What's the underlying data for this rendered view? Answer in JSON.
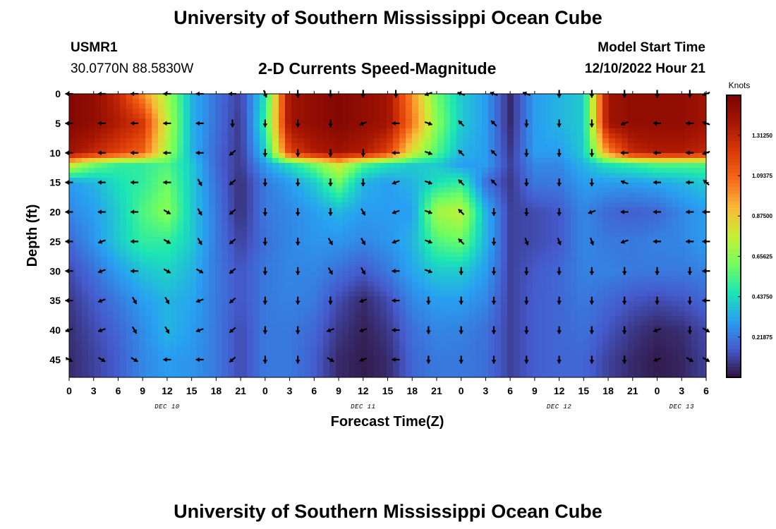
{
  "header": {
    "title": "University of Southern Mississippi Ocean Cube",
    "station_id": "USMR1",
    "station_coords": "30.0770N  88.5830W",
    "subtitle": "2-D Currents Speed-Magnitude",
    "model_start_label": "Model Start Time",
    "model_start_value": "12/10/2022 Hour 21"
  },
  "footer": {
    "title": "University of Southern Mississippi Ocean Cube"
  },
  "chart_data": {
    "type": "heatmap",
    "title": "2-D Currents Speed-Magnitude",
    "xlabel": "Forecast Time(Z)",
    "ylabel": "Depth (ft)",
    "x_hours_range": [
      0,
      78
    ],
    "y_range": [
      0,
      48
    ],
    "x_tick_labels": [
      "0",
      "3",
      "6",
      "9",
      "12",
      "15",
      "18",
      "21",
      "0",
      "3",
      "6",
      "9",
      "12",
      "15",
      "18",
      "21",
      "0",
      "3",
      "6",
      "9",
      "12",
      "15",
      "18",
      "21",
      "0",
      "3",
      "6"
    ],
    "y_tick_labels": [
      "0",
      "5",
      "10",
      "15",
      "20",
      "25",
      "30",
      "35",
      "40",
      "45"
    ],
    "day_labels": [
      {
        "label": "DEC 10",
        "hour": 12
      },
      {
        "label": "DEC 11",
        "hour": 36
      },
      {
        "label": "DEC 12",
        "hour": 60
      },
      {
        "label": "DEC 13",
        "hour": 75
      }
    ],
    "colorbar": {
      "unit": "Knots",
      "range": [
        0.0,
        1.53
      ],
      "tick_labels": [
        "1.31250",
        "1.09375",
        "0.87500",
        "0.65625",
        "0.43750",
        "0.21875"
      ],
      "tick_values": [
        1.3125,
        1.09375,
        0.875,
        0.65625,
        0.4375,
        0.21875
      ]
    },
    "speed_grid": {
      "units": "knots",
      "x_hours": [
        0,
        3,
        6,
        9,
        12,
        15,
        18,
        21,
        24,
        27,
        30,
        33,
        36,
        39,
        42,
        45,
        48,
        51,
        54,
        57,
        60,
        63,
        66,
        69,
        72,
        75,
        78
      ],
      "depths_ft": [
        0,
        5,
        10,
        12,
        15,
        20,
        25,
        30,
        35,
        40,
        45,
        48
      ],
      "values": [
        [
          1.5,
          1.45,
          1.3,
          1.0,
          0.7,
          0.35,
          0.2,
          0.1,
          0.45,
          1.4,
          1.45,
          1.5,
          1.45,
          1.4,
          1.0,
          0.6,
          0.4,
          0.3,
          0.05,
          0.3,
          0.35,
          0.4,
          1.4,
          1.45,
          1.45,
          1.45,
          1.4
        ],
        [
          1.5,
          1.45,
          1.35,
          1.25,
          0.75,
          0.35,
          0.2,
          0.08,
          0.5,
          1.4,
          1.45,
          1.5,
          1.45,
          1.4,
          1.05,
          0.65,
          0.4,
          0.3,
          0.05,
          0.3,
          0.35,
          0.4,
          1.4,
          1.45,
          1.45,
          1.45,
          1.4
        ],
        [
          1.4,
          1.3,
          1.2,
          1.1,
          0.7,
          0.35,
          0.18,
          0.08,
          0.4,
          1.2,
          1.35,
          1.4,
          1.35,
          1.2,
          0.8,
          0.55,
          0.35,
          0.3,
          0.08,
          0.3,
          0.3,
          0.4,
          1.0,
          1.3,
          1.35,
          1.35,
          1.3
        ],
        [
          0.8,
          0.6,
          0.5,
          0.5,
          0.55,
          0.4,
          0.18,
          0.08,
          0.3,
          0.45,
          0.6,
          0.8,
          0.55,
          0.45,
          0.4,
          0.4,
          0.3,
          0.3,
          0.1,
          0.25,
          0.25,
          0.35,
          0.45,
          0.5,
          0.55,
          0.55,
          0.55
        ],
        [
          0.3,
          0.35,
          0.45,
          0.5,
          0.6,
          0.4,
          0.2,
          0.06,
          0.22,
          0.3,
          0.4,
          0.6,
          0.35,
          0.3,
          0.35,
          0.45,
          0.5,
          0.2,
          0.08,
          0.22,
          0.22,
          0.3,
          0.3,
          0.3,
          0.32,
          0.35,
          0.4
        ],
        [
          0.25,
          0.3,
          0.4,
          0.55,
          0.65,
          0.4,
          0.22,
          0.06,
          0.22,
          0.25,
          0.3,
          0.35,
          0.3,
          0.3,
          0.3,
          0.7,
          0.75,
          0.35,
          0.1,
          0.12,
          0.15,
          0.25,
          0.18,
          0.16,
          0.18,
          0.25,
          0.3
        ],
        [
          0.18,
          0.28,
          0.4,
          0.5,
          0.5,
          0.4,
          0.22,
          0.1,
          0.2,
          0.25,
          0.28,
          0.28,
          0.25,
          0.28,
          0.35,
          0.55,
          0.6,
          0.35,
          0.1,
          0.12,
          0.15,
          0.25,
          0.22,
          0.22,
          0.24,
          0.25,
          0.3
        ],
        [
          0.12,
          0.2,
          0.3,
          0.38,
          0.42,
          0.35,
          0.22,
          0.14,
          0.22,
          0.25,
          0.25,
          0.2,
          0.15,
          0.22,
          0.32,
          0.4,
          0.4,
          0.3,
          0.1,
          0.15,
          0.18,
          0.24,
          0.24,
          0.22,
          0.22,
          0.22,
          0.24
        ],
        [
          0.08,
          0.15,
          0.22,
          0.3,
          0.35,
          0.32,
          0.22,
          0.14,
          0.22,
          0.24,
          0.22,
          0.12,
          0.05,
          0.12,
          0.25,
          0.3,
          0.3,
          0.25,
          0.1,
          0.16,
          0.18,
          0.22,
          0.18,
          0.14,
          0.12,
          0.14,
          0.18
        ],
        [
          0.06,
          0.12,
          0.18,
          0.26,
          0.35,
          0.3,
          0.22,
          0.12,
          0.22,
          0.22,
          0.18,
          0.08,
          0.03,
          0.08,
          0.2,
          0.25,
          0.24,
          0.2,
          0.1,
          0.16,
          0.18,
          0.2,
          0.14,
          0.08,
          0.04,
          0.06,
          0.12
        ],
        [
          0.05,
          0.1,
          0.16,
          0.25,
          0.3,
          0.28,
          0.22,
          0.12,
          0.22,
          0.22,
          0.16,
          0.05,
          0.02,
          0.05,
          0.18,
          0.22,
          0.22,
          0.2,
          0.1,
          0.16,
          0.18,
          0.18,
          0.1,
          0.05,
          0.02,
          0.04,
          0.1
        ],
        [
          0.05,
          0.1,
          0.16,
          0.25,
          0.3,
          0.28,
          0.22,
          0.12,
          0.22,
          0.22,
          0.16,
          0.05,
          0.02,
          0.05,
          0.18,
          0.22,
          0.22,
          0.2,
          0.1,
          0.16,
          0.18,
          0.18,
          0.1,
          0.05,
          0.02,
          0.04,
          0.1
        ]
      ]
    },
    "vector_grid": {
      "x_hours": [
        0,
        4,
        8,
        12,
        16,
        20,
        24,
        28,
        32,
        36,
        40,
        44,
        48,
        52,
        56,
        60,
        64,
        68,
        72,
        76,
        78
      ],
      "depths_ft": [
        0,
        5,
        10,
        15,
        20,
        25,
        30,
        35,
        40,
        45
      ],
      "direction_deg_math": [
        [
          180,
          180,
          180,
          180,
          180,
          180,
          -70,
          -90,
          -90,
          -90,
          -90,
          200,
          160,
          160,
          160,
          -90,
          -90,
          -90,
          -90,
          -90,
          200
        ],
        [
          180,
          180,
          180,
          180,
          180,
          -90,
          -90,
          -90,
          -90,
          200,
          180,
          -20,
          135,
          135,
          -90,
          -90,
          -90,
          200,
          180,
          180,
          160
        ],
        [
          180,
          180,
          180,
          180,
          180,
          220,
          -90,
          -90,
          -90,
          -90,
          180,
          -20,
          135,
          135,
          -90,
          -90,
          -90,
          180,
          180,
          180,
          200
        ],
        [
          180,
          180,
          180,
          180,
          -60,
          220,
          -90,
          -90,
          -90,
          -90,
          200,
          -20,
          135,
          135,
          -90,
          -90,
          -90,
          160,
          180,
          180,
          140
        ],
        [
          180,
          180,
          180,
          -30,
          -60,
          220,
          -90,
          -90,
          -90,
          -60,
          200,
          -20,
          135,
          -90,
          -90,
          -90,
          200,
          180,
          180,
          180,
          180
        ],
        [
          180,
          200,
          180,
          -30,
          -60,
          220,
          -90,
          -90,
          -60,
          -60,
          200,
          -20,
          135,
          -90,
          -70,
          -70,
          -70,
          200,
          180,
          180,
          180
        ],
        [
          180,
          200,
          180,
          -30,
          -30,
          220,
          -90,
          -90,
          -60,
          -60,
          180,
          -20,
          -90,
          -90,
          -90,
          -90,
          -90,
          -90,
          -90,
          -90,
          180
        ],
        [
          180,
          200,
          -60,
          -60,
          200,
          220,
          -90,
          -90,
          -90,
          200,
          180,
          -90,
          -90,
          -90,
          -90,
          -90,
          -90,
          -90,
          -90,
          -90,
          180
        ],
        [
          200,
          200,
          -60,
          -60,
          200,
          220,
          -90,
          -90,
          200,
          200,
          180,
          -90,
          -90,
          -90,
          -90,
          -90,
          -90,
          -90,
          200,
          -90,
          -30
        ],
        [
          -30,
          -30,
          -30,
          180,
          180,
          220,
          -90,
          -90,
          -30,
          200,
          180,
          -90,
          -90,
          -90,
          -90,
          -90,
          -90,
          -90,
          200,
          -30,
          -30
        ]
      ]
    }
  }
}
